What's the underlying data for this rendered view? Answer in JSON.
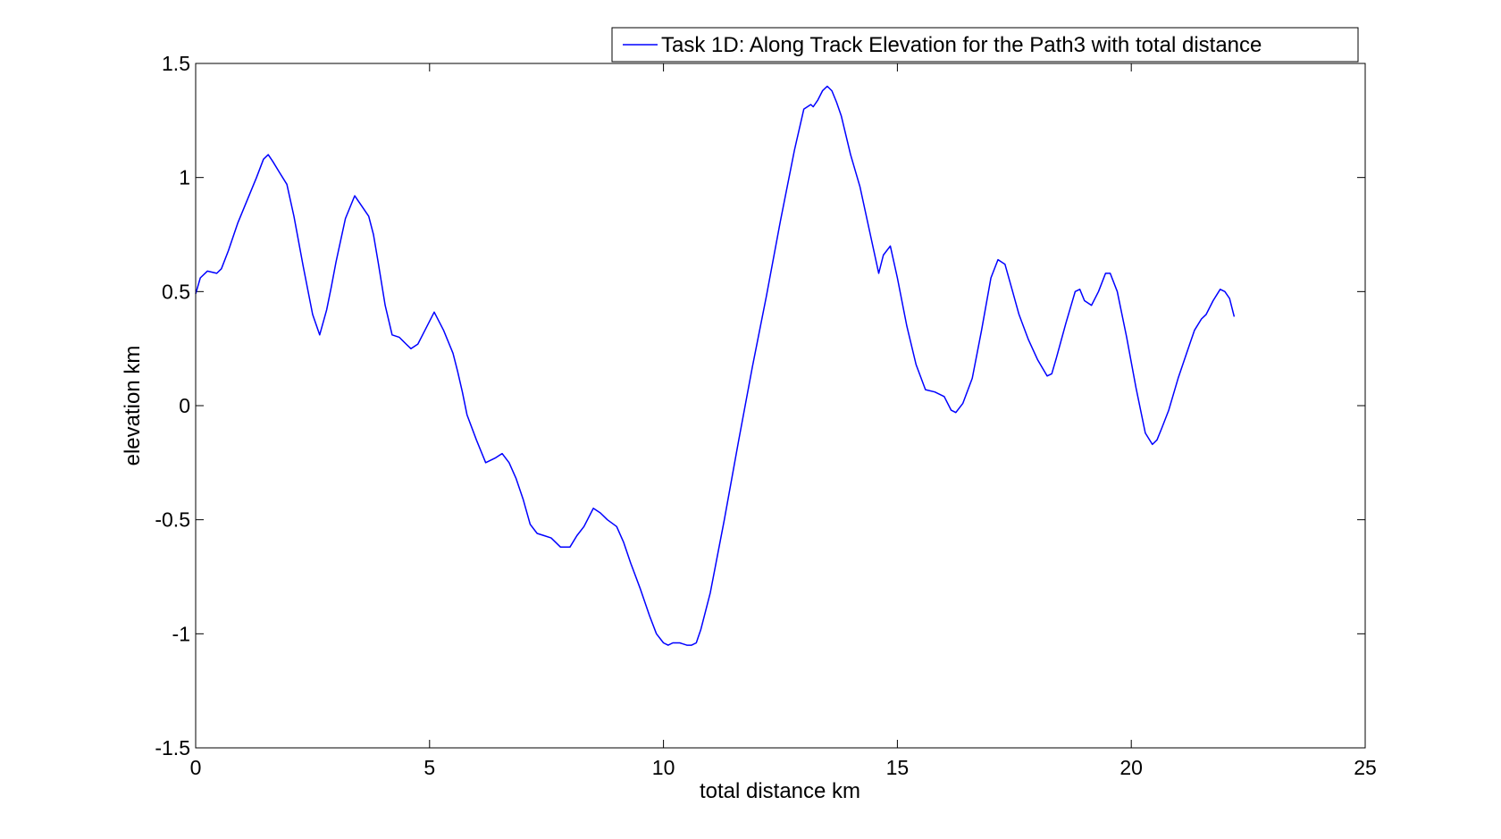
{
  "chart_data": {
    "type": "line",
    "title": "",
    "xlabel": "total distance km",
    "ylabel": "elevation km",
    "xlim": [
      0,
      25
    ],
    "ylim": [
      -1.5,
      1.5
    ],
    "x_ticks": [
      0,
      5,
      10,
      15,
      20,
      25
    ],
    "y_ticks": [
      -1.5,
      -1,
      -0.5,
      0,
      0.5,
      1,
      1.5
    ],
    "x_tick_labels": [
      "0",
      "5",
      "10",
      "15",
      "20",
      "25"
    ],
    "y_tick_labels": [
      "-1.5",
      "-1",
      "-0.5",
      "0",
      "0.5",
      "1",
      "1.5"
    ],
    "grid": false,
    "legend_position": "top-right",
    "series_color": "#0000ff",
    "series": [
      {
        "name": "Task 1D: Along Track Elevation for the Path3 with total distance",
        "x": [
          0,
          0.1,
          0.25,
          0.45,
          0.55,
          0.7,
          0.9,
          1.1,
          1.3,
          1.45,
          1.55,
          1.65,
          1.8,
          1.95,
          2.1,
          2.3,
          2.5,
          2.65,
          2.8,
          2.9,
          3.0,
          3.2,
          3.4,
          3.6,
          3.7,
          3.8,
          3.9,
          4.05,
          4.2,
          4.35,
          4.5,
          4.6,
          4.75,
          4.9,
          5.1,
          5.3,
          5.5,
          5.6,
          5.7,
          5.8,
          6.0,
          6.2,
          6.4,
          6.55,
          6.7,
          6.85,
          7.0,
          7.15,
          7.3,
          7.45,
          7.6,
          7.8,
          8.0,
          8.15,
          8.3,
          8.5,
          8.65,
          8.8,
          9.0,
          9.15,
          9.3,
          9.5,
          9.7,
          9.85,
          10.0,
          10.1,
          10.2,
          10.35,
          10.5,
          10.6,
          10.7,
          10.8,
          11.0,
          11.3,
          11.6,
          11.9,
          12.2,
          12.5,
          12.8,
          13.0,
          13.15,
          13.2,
          13.3,
          13.4,
          13.5,
          13.6,
          13.7,
          13.8,
          14.0,
          14.2,
          14.4,
          14.6,
          14.7,
          14.85,
          15.0,
          15.2,
          15.4,
          15.6,
          15.8,
          16.0,
          16.15,
          16.25,
          16.4,
          16.6,
          16.8,
          17.0,
          17.15,
          17.3,
          17.45,
          17.6,
          17.8,
          18.0,
          18.2,
          18.3,
          18.4,
          18.6,
          18.8,
          18.9,
          19.0,
          19.15,
          19.3,
          19.45,
          19.55,
          19.7,
          19.9,
          20.1,
          20.3,
          20.45,
          20.55,
          20.65,
          20.8,
          21.0,
          21.2,
          21.35,
          21.5,
          21.6,
          21.75,
          21.9,
          22.0,
          22.1,
          22.2
        ],
        "y": [
          0.49,
          0.56,
          0.59,
          0.58,
          0.6,
          0.68,
          0.8,
          0.9,
          1.0,
          1.08,
          1.1,
          1.07,
          1.02,
          0.97,
          0.83,
          0.61,
          0.4,
          0.31,
          0.42,
          0.52,
          0.63,
          0.82,
          0.92,
          0.86,
          0.83,
          0.75,
          0.63,
          0.44,
          0.31,
          0.3,
          0.27,
          0.25,
          0.27,
          0.33,
          0.41,
          0.33,
          0.23,
          0.15,
          0.06,
          -0.04,
          -0.15,
          -0.25,
          -0.23,
          -0.21,
          -0.25,
          -0.32,
          -0.41,
          -0.52,
          -0.56,
          -0.57,
          -0.58,
          -0.62,
          -0.62,
          -0.57,
          -0.53,
          -0.45,
          -0.47,
          -0.5,
          -0.53,
          -0.6,
          -0.69,
          -0.8,
          -0.92,
          -1.0,
          -1.04,
          -1.05,
          -1.04,
          -1.04,
          -1.05,
          -1.05,
          -1.04,
          -0.98,
          -0.82,
          -0.5,
          -0.16,
          0.17,
          0.48,
          0.81,
          1.12,
          1.3,
          1.32,
          1.31,
          1.34,
          1.38,
          1.4,
          1.38,
          1.33,
          1.27,
          1.1,
          0.96,
          0.77,
          0.58,
          0.66,
          0.7,
          0.56,
          0.35,
          0.18,
          0.07,
          0.06,
          0.04,
          -0.02,
          -0.03,
          0.01,
          0.12,
          0.33,
          0.56,
          0.64,
          0.62,
          0.51,
          0.4,
          0.29,
          0.2,
          0.13,
          0.14,
          0.21,
          0.36,
          0.5,
          0.51,
          0.46,
          0.44,
          0.5,
          0.58,
          0.58,
          0.5,
          0.3,
          0.08,
          -0.12,
          -0.17,
          -0.15,
          -0.1,
          -0.02,
          0.12,
          0.24,
          0.33,
          0.38,
          0.4,
          0.46,
          0.51,
          0.5,
          0.47,
          0.39
        ]
      }
    ]
  }
}
